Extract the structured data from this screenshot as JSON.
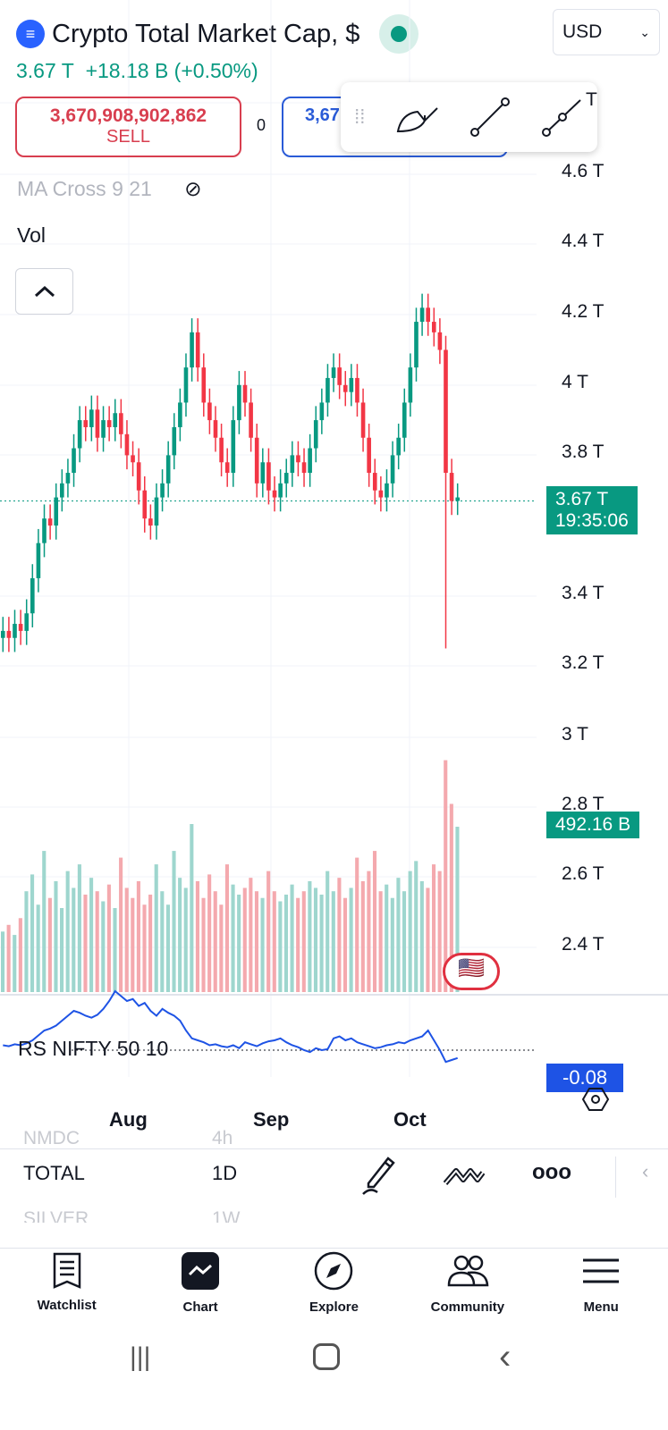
{
  "header": {
    "title": "Crypto Total Market Cap, $",
    "logo_icon": "crypto-logo",
    "currency": "USD",
    "price": "3.67 T",
    "change": "+18.18 B (+0.50%)",
    "status_color": "#089981"
  },
  "trade": {
    "sell_price": "3,670,908,902,862",
    "sell_label": "SELL",
    "spread": "0",
    "buy_price": "3,67"
  },
  "drawing_toolbar": {
    "tools": [
      "brush-icon",
      "trend-line-icon",
      "ray-line-icon"
    ]
  },
  "indicators": {
    "ma_cross": "MA Cross 9 21",
    "vol": "Vol",
    "rs": "RS NIFTY 50 10"
  },
  "price_axis": [
    "T",
    "4.6 T",
    "4.4 T",
    "4.2 T",
    "4 T",
    "3.8 T",
    "3.4 T",
    "3.2 T",
    "3 T",
    "2.8 T",
    "2.6 T",
    "2.4 T"
  ],
  "price_tag": {
    "price": "3.67 T",
    "countdown": "19:35:06"
  },
  "volume_tag": "492.16 B",
  "rs_tag": "-0.08",
  "time_axis": [
    "Aug",
    "Sep",
    "Oct"
  ],
  "symbol_bar": {
    "prev_symbol": "NMDC",
    "prev_interval": "4h",
    "symbol": "TOTAL",
    "interval": "1D",
    "next_symbol": "SILVER",
    "next_interval": "1W"
  },
  "nav": [
    {
      "label": "Watchlist"
    },
    {
      "label": "Chart"
    },
    {
      "label": "Explore"
    },
    {
      "label": "Community"
    },
    {
      "label": "Menu"
    }
  ],
  "colors": {
    "up": "#089981",
    "down": "#f23645",
    "rs_line": "#1e53e5"
  },
  "chart_data": {
    "type": "candlestick",
    "ylim": [
      2.3,
      4.75
    ],
    "y_unit": "T",
    "close": [
      3.3,
      3.28,
      3.32,
      3.3,
      3.35,
      3.45,
      3.55,
      3.62,
      3.6,
      3.68,
      3.72,
      3.75,
      3.82,
      3.9,
      3.88,
      3.93,
      3.85,
      3.9,
      3.88,
      3.92,
      3.86,
      3.8,
      3.78,
      3.7,
      3.62,
      3.6,
      3.68,
      3.72,
      3.8,
      3.88,
      3.95,
      4.05,
      4.15,
      4.05,
      3.95,
      3.9,
      3.85,
      3.78,
      3.75,
      3.9,
      4.0,
      3.95,
      3.85,
      3.72,
      3.78,
      3.7,
      3.68,
      3.72,
      3.75,
      3.8,
      3.78,
      3.75,
      3.82,
      3.9,
      3.95,
      4.02,
      4.05,
      4.0,
      3.98,
      4.02,
      3.95,
      3.85,
      3.75,
      3.7,
      3.68,
      3.72,
      3.8,
      3.85,
      3.95,
      4.05,
      4.18,
      4.22,
      4.18,
      4.15,
      4.1,
      3.75,
      3.67,
      3.68
    ],
    "volume_b": [
      180,
      200,
      170,
      220,
      300,
      350,
      260,
      420,
      280,
      330,
      250,
      360,
      310,
      380,
      290,
      340,
      300,
      270,
      320,
      250,
      400,
      310,
      280,
      330,
      260,
      290,
      380,
      300,
      260,
      420,
      340,
      310,
      500,
      330,
      280,
      350,
      300,
      260,
      380,
      320,
      290,
      310,
      340,
      300,
      280,
      360,
      300,
      270,
      290,
      320,
      280,
      300,
      330,
      310,
      290,
      360,
      300,
      340,
      280,
      310,
      400,
      330,
      360,
      420,
      300,
      320,
      280,
      340,
      300,
      360,
      390,
      330,
      310,
      380,
      360,
      690,
      560,
      492
    ],
    "rs": [
      0.05,
      0.04,
      0.06,
      0.05,
      0.07,
      0.1,
      0.15,
      0.2,
      0.22,
      0.25,
      0.3,
      0.35,
      0.4,
      0.38,
      0.35,
      0.33,
      0.36,
      0.42,
      0.5,
      0.6,
      0.55,
      0.5,
      0.52,
      0.45,
      0.48,
      0.4,
      0.35,
      0.42,
      0.38,
      0.35,
      0.3,
      0.2,
      0.12,
      0.1,
      0.08,
      0.05,
      0.06,
      0.04,
      0.03,
      0.05,
      0.02,
      0.08,
      0.06,
      0.04,
      0.07,
      0.09,
      0.1,
      0.12,
      0.08,
      0.05,
      0.03,
      0.0,
      -0.02,
      0.02,
      0.0,
      0.01,
      0.12,
      0.14,
      0.1,
      0.12,
      0.08,
      0.06,
      0.04,
      0.02,
      0.03,
      0.05,
      0.06,
      0.08,
      0.07,
      0.1,
      0.12,
      0.14,
      0.2,
      0.1,
      0.0,
      -0.12,
      -0.1,
      -0.08
    ]
  }
}
